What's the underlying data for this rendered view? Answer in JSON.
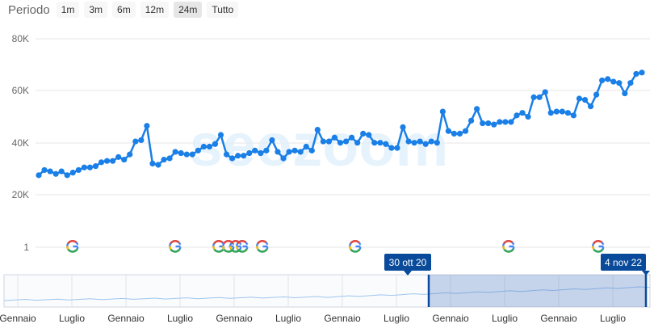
{
  "period": {
    "label": "Periodo",
    "buttons": [
      "1m",
      "3m",
      "6m",
      "12m",
      "24m",
      "Tutto"
    ],
    "active": "24m"
  },
  "watermark": "seozoom",
  "colors": {
    "line": "#1a7fe6",
    "grid": "#e6e6e6",
    "navigator_mask": "rgba(64,110,190,0.28)",
    "flag": "#0a4a9a"
  },
  "chart_data": {
    "type": "line",
    "ylim": [
      20000,
      80000
    ],
    "yticks": [
      "80K",
      "60K",
      "40K",
      "20K",
      "1"
    ],
    "values": [
      27500,
      29500,
      29000,
      28000,
      29000,
      27500,
      28500,
      29500,
      30500,
      30500,
      31000,
      32500,
      33000,
      33000,
      34500,
      33500,
      35500,
      40500,
      41000,
      46500,
      32000,
      31500,
      33500,
      34000,
      36500,
      36000,
      35500,
      35500,
      37000,
      38500,
      38500,
      39500,
      43000,
      35500,
      34000,
      35000,
      35000,
      36000,
      37000,
      36000,
      37000,
      41000,
      36500,
      34000,
      36500,
      37000,
      36500,
      38500,
      37000,
      45000,
      40500,
      40500,
      42000,
      40000,
      40500,
      42000,
      40000,
      43500,
      43000,
      40000,
      40000,
      39500,
      38000,
      38000,
      46000,
      40500,
      40000,
      40500,
      39500,
      40500,
      40000,
      52000,
      44500,
      43500,
      43500,
      44500,
      48500,
      53000,
      47500,
      47500,
      47000,
      48000,
      48000,
      48000,
      50500,
      51500,
      50000,
      57500,
      57500,
      59500,
      51500,
      52000,
      52000,
      51500,
      50500,
      57000,
      56500,
      54000,
      58500,
      64000,
      64500,
      63500,
      63000,
      59000,
      63000,
      66500,
      67000
    ],
    "google_updates": 9,
    "navigator": {
      "x_labels": [
        "Gennaio",
        "Luglio",
        "Gennaio",
        "Luglio",
        "Gennaio",
        "Luglio",
        "Gennaio",
        "Luglio",
        "Gennaio",
        "Luglio",
        "Gennaio",
        "Luglio"
      ],
      "range_start": "30 ott 20",
      "range_end": "4 nov 22"
    }
  }
}
